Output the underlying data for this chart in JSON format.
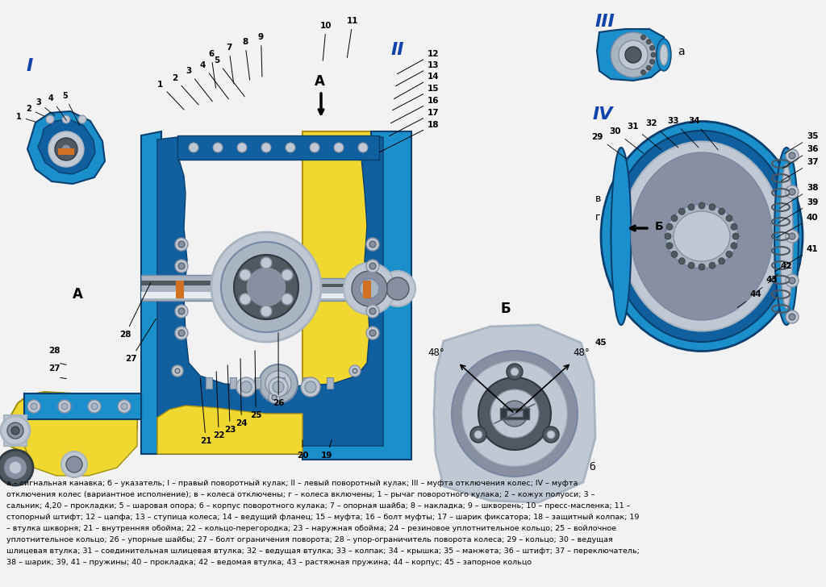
{
  "bg_color": "#f5f5f5",
  "caption_lines": [
    "а – сигнальная канавка; б – указатель; I – правый поворотный кулак; II – левый поворотный кулак; III – муфта отключения колес; IV – муфта",
    "отключения колес (вариантное исполнение); в – колеса отключены; г – колеса включены; 1 – рычаг поворотного кулака; 2 – кожух полуоси; 3 –",
    "сальник; 4,20 – прокладки; 5 – шаровая опора; 6 – корпус поворотного кулака; 7 – опорная шайба; 8 – накладка; 9 – шкворень; 10 – пресс-масленка; 11 –",
    "стопорный штифт; 12 – цапфа; 13 – ступица колеса; 14 – ведущий фланец; 15 – муфта; 16 – болт муфты; 17 – шарик фиксатора; 18 – защитный колпак; 19",
    "– втулка шкворня; 21 – внутренняя обойма; 22 – кольцо-перегородка; 23 – наружная обойма; 24 – резиновое уплотнительное кольцо; 25 – войлочное",
    "уплотнительное кольцо; 26 – упорные шайбы; 27 – болт ограничения поворота; 28 – упор-ограничитель поворота колеса; 29 – кольцо; 30 – ведущая",
    "шлицевая втулка; 31 – соединительная шлицевая втулка; 32 – ведущая втулка; 33 – колпак; 34 – крышка; 35 – манжета; 36 – штифт; 37 – переключатель;",
    "38 – шарик; 39, 41 – пружины; 40 – прокладка; 42 – ведомая втулка; 43 – растяжная пружина; 44 – корпус; 45 – запорное кольцо"
  ]
}
